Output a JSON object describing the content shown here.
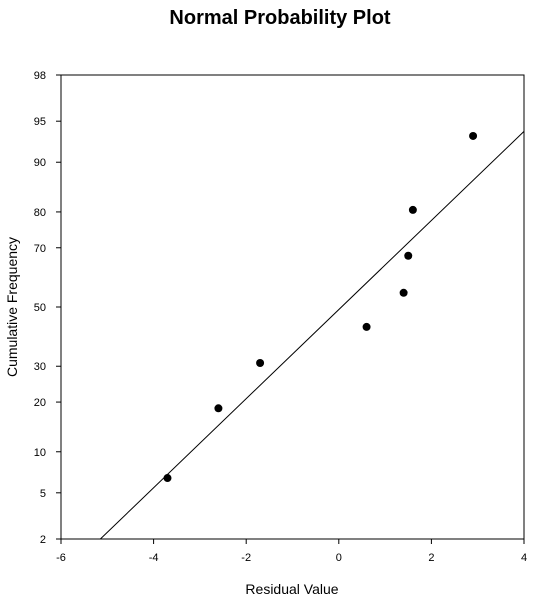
{
  "chart_data": {
    "type": "scatter",
    "title": "Normal Probability Plot",
    "xlabel": "Residual Value",
    "ylabel": "Cumulative Frequency",
    "xlim": [
      -6,
      4
    ],
    "y_scale": "normal-probability",
    "ylim": [
      2,
      98
    ],
    "x_ticks": [
      "-6",
      "-4",
      "-2",
      "0",
      "2",
      "4"
    ],
    "y_ticks": [
      "2",
      "5",
      "10",
      "20",
      "30",
      "50",
      "70",
      "80",
      "90",
      "95",
      "98"
    ],
    "grid": false,
    "points": [
      {
        "x": -3.7,
        "y": 6.5
      },
      {
        "x": -2.6,
        "y": 18.5
      },
      {
        "x": -1.7,
        "y": 31
      },
      {
        "x": 0.6,
        "y": 43
      },
      {
        "x": 1.4,
        "y": 55
      },
      {
        "x": 1.5,
        "y": 67.5
      },
      {
        "x": 1.6,
        "y": 80.5
      },
      {
        "x": 2.9,
        "y": 93.5
      }
    ],
    "fit_line": {
      "from": {
        "x": -5.15,
        "y": 2
      },
      "to": {
        "x": 4,
        "y": 94
      }
    },
    "colors": {
      "points": "#000000",
      "line": "#000000",
      "axes": "#000000"
    }
  }
}
